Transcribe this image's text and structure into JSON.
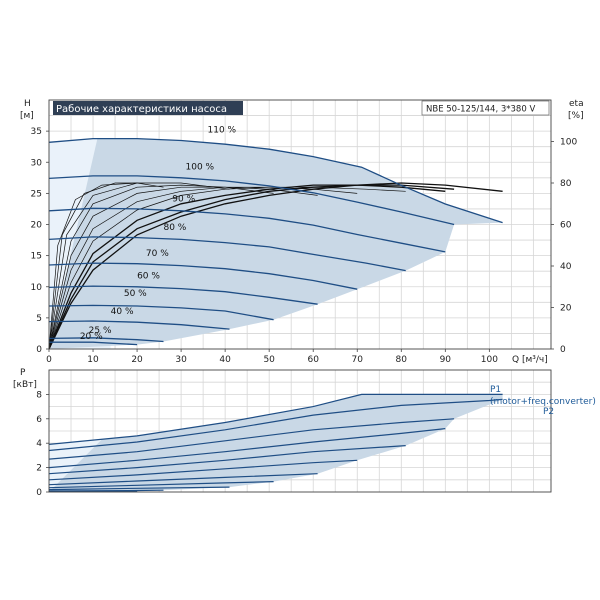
{
  "colors": {
    "curve": "#1f4e85",
    "area": "#c9d8e6",
    "area_light": "#eaf2fa",
    "eta": "#111111",
    "thin": "#333333",
    "title_bg": "#2f3f55",
    "grid": "#d6d6d6"
  },
  "top": {
    "title": "Рабочие характеристики насоса",
    "model": "NBE 50-125/144, 3*380 V",
    "y_label_line1": "H",
    "y_label_line2": "[м]",
    "eta_label_line1": "eta",
    "eta_label_line2": "[%]",
    "x_label": "Q [м³/ч]"
  },
  "bottom": {
    "y_label_line1": "P",
    "y_label_line2": "[кВт]",
    "legend_p1": "P1",
    "legend_p1_note": "(motor+freq.converter)",
    "legend_p2": "P2"
  },
  "chart_data": [
    {
      "type": "line",
      "title": "Рабочие характеристики насоса",
      "xlabel": "Q [м³/ч]",
      "ylabel": "H [м]",
      "y2label": "eta [%]",
      "xlim": [
        0,
        114
      ],
      "ylim": [
        0,
        40
      ],
      "y2lim": [
        0,
        120
      ],
      "x_ticks": [
        0,
        10,
        20,
        30,
        40,
        50,
        60,
        70,
        80,
        90,
        100
      ],
      "y_ticks": [
        0,
        5,
        10,
        15,
        20,
        25,
        30,
        35
      ],
      "y2_ticks": [
        0,
        20,
        40,
        60,
        80,
        100
      ],
      "grid": true,
      "head_curves": [
        {
          "name": "110 %",
          "points": [
            [
              0,
              33.2
            ],
            [
              10,
              33.8
            ],
            [
              20,
              33.8
            ],
            [
              30,
              33.5
            ],
            [
              40,
              32.9
            ],
            [
              50,
              32.1
            ],
            [
              60,
              30.9
            ],
            [
              71,
              29.2
            ],
            [
              80,
              26.3
            ],
            [
              90,
              23.3
            ],
            [
              103,
              20.3
            ]
          ]
        },
        {
          "name": "100 %",
          "points": [
            [
              0,
              27.4
            ],
            [
              10,
              27.8
            ],
            [
              20,
              27.8
            ],
            [
              30,
              27.5
            ],
            [
              40,
              27.0
            ],
            [
              50,
              26.2
            ],
            [
              60,
              25.1
            ],
            [
              70,
              23.6
            ],
            [
              80,
              22.0
            ],
            [
              92,
              20.0
            ]
          ]
        },
        {
          "name": "90 %",
          "points": [
            [
              0,
              22.2
            ],
            [
              10,
              22.6
            ],
            [
              20,
              22.5
            ],
            [
              30,
              22.2
            ],
            [
              40,
              21.7
            ],
            [
              50,
              21.0
            ],
            [
              60,
              19.9
            ],
            [
              70,
              18.4
            ],
            [
              80,
              17.0
            ],
            [
              90,
              15.6
            ]
          ]
        },
        {
          "name": "80 %",
          "points": [
            [
              0,
              17.6
            ],
            [
              10,
              18.0
            ],
            [
              20,
              17.9
            ],
            [
              30,
              17.6
            ],
            [
              40,
              17.1
            ],
            [
              50,
              16.4
            ],
            [
              60,
              15.2
            ],
            [
              72,
              13.8
            ],
            [
              81,
              12.6
            ]
          ]
        },
        {
          "name": "70 %",
          "points": [
            [
              0,
              13.5
            ],
            [
              10,
              13.8
            ],
            [
              20,
              13.7
            ],
            [
              30,
              13.4
            ],
            [
              40,
              12.9
            ],
            [
              50,
              12.1
            ],
            [
              60,
              11.0
            ],
            [
              70,
              9.6
            ]
          ]
        },
        {
          "name": "60 %",
          "points": [
            [
              0,
              9.9
            ],
            [
              10,
              10.1
            ],
            [
              20,
              10.0
            ],
            [
              30,
              9.7
            ],
            [
              40,
              9.2
            ],
            [
              50,
              8.3
            ],
            [
              61,
              7.2
            ]
          ]
        },
        {
          "name": "50 %",
          "points": [
            [
              0,
              6.9
            ],
            [
              10,
              7.0
            ],
            [
              20,
              6.9
            ],
            [
              30,
              6.6
            ],
            [
              40,
              6.1
            ],
            [
              51,
              4.7
            ]
          ]
        },
        {
          "name": "40 %",
          "points": [
            [
              0,
              4.4
            ],
            [
              10,
              4.5
            ],
            [
              20,
              4.3
            ],
            [
              30,
              3.9
            ],
            [
              41,
              3.2
            ]
          ]
        },
        {
          "name": "25 %",
          "points": [
            [
              0,
              1.7
            ],
            [
              10,
              1.8
            ],
            [
              20,
              1.5
            ],
            [
              26,
              1.2
            ]
          ]
        },
        {
          "name": "20 %",
          "points": [
            [
              0,
              1.1
            ],
            [
              10,
              1.1
            ],
            [
              20,
              0.7
            ]
          ]
        }
      ],
      "efficiency_curves": [
        {
          "points": [
            [
              0,
              0
            ],
            [
              5,
              22
            ],
            [
              10,
              38
            ],
            [
              20,
              55
            ],
            [
              30,
              64
            ],
            [
              40,
              70
            ],
            [
              50,
              74
            ],
            [
              60,
              77
            ],
            [
              70,
              79
            ],
            [
              80,
              80
            ],
            [
              90,
              79
            ],
            [
              103,
              76
            ]
          ]
        },
        {
          "points": [
            [
              0,
              0
            ],
            [
              5,
              24
            ],
            [
              10,
              42
            ],
            [
              20,
              58
            ],
            [
              30,
              66
            ],
            [
              40,
              72
            ],
            [
              50,
              76
            ],
            [
              60,
              78
            ],
            [
              70,
              79
            ],
            [
              80,
              79
            ],
            [
              92,
              77
            ]
          ]
        },
        {
          "points": [
            [
              0,
              0
            ],
            [
              5,
              27
            ],
            [
              10,
              46
            ],
            [
              20,
              62
            ],
            [
              30,
              70
            ],
            [
              40,
              74
            ],
            [
              50,
              77
            ],
            [
              60,
              79
            ],
            [
              70,
              79
            ],
            [
              80,
              78
            ],
            [
              90,
              76
            ]
          ]
        },
        {
          "points": [
            [
              0,
              0
            ],
            [
              5,
              32
            ],
            [
              10,
              52
            ],
            [
              20,
              67
            ],
            [
              30,
              74
            ],
            [
              40,
              77
            ],
            [
              50,
              78
            ],
            [
              60,
              78
            ],
            [
              72,
              77
            ],
            [
              81,
              76
            ]
          ]
        },
        {
          "points": [
            [
              0,
              0
            ],
            [
              5,
              38
            ],
            [
              10,
              58
            ],
            [
              20,
              71
            ],
            [
              30,
              76
            ],
            [
              40,
              78
            ],
            [
              50,
              78
            ],
            [
              60,
              77
            ],
            [
              70,
              75
            ]
          ]
        },
        {
          "points": [
            [
              0,
              0
            ],
            [
              5,
              45
            ],
            [
              10,
              64
            ],
            [
              20,
              75
            ],
            [
              30,
              78
            ],
            [
              40,
              78
            ],
            [
              50,
              77
            ],
            [
              61,
              74
            ]
          ]
        },
        {
          "points": [
            [
              0,
              0
            ],
            [
              5,
              52
            ],
            [
              10,
              70
            ],
            [
              20,
              78
            ],
            [
              30,
              79
            ],
            [
              40,
              78
            ],
            [
              51,
              75
            ]
          ]
        },
        {
          "points": [
            [
              0,
              0
            ],
            [
              4,
              55
            ],
            [
              10,
              74
            ],
            [
              20,
              80
            ],
            [
              30,
              80
            ],
            [
              41,
              77
            ]
          ]
        },
        {
          "points": [
            [
              0,
              0
            ],
            [
              3,
              55
            ],
            [
              8,
              75
            ],
            [
              15,
              80
            ],
            [
              20,
              80
            ],
            [
              26,
              78
            ]
          ]
        },
        {
          "points": [
            [
              0,
              0
            ],
            [
              2,
              50
            ],
            [
              6,
              72
            ],
            [
              12,
              79
            ],
            [
              20,
              80
            ]
          ]
        }
      ],
      "pct_labels": [
        {
          "text": "110 %",
          "x": 36,
          "y": 34.8
        },
        {
          "text": "100 %",
          "x": 31,
          "y": 28.8
        },
        {
          "text": "90 %",
          "x": 28,
          "y": 23.7
        },
        {
          "text": "80 %",
          "x": 26,
          "y": 19.1
        },
        {
          "text": "70 %",
          "x": 22,
          "y": 14.9
        },
        {
          "text": "60 %",
          "x": 20,
          "y": 11.3
        },
        {
          "text": "50 %",
          "x": 17,
          "y": 8.5
        },
        {
          "text": "40 %",
          "x": 14,
          "y": 5.6
        },
        {
          "text": "25 %",
          "x": 9,
          "y": 2.6
        },
        {
          "text": "20 %",
          "x": 7,
          "y": 1.6
        }
      ]
    },
    {
      "type": "line",
      "title": "",
      "xlabel": "",
      "ylabel": "P [кВт]",
      "xlim": [
        0,
        114
      ],
      "ylim": [
        0,
        10
      ],
      "y_ticks": [
        0,
        2,
        4,
        6,
        8
      ],
      "grid": true,
      "power_curves": [
        {
          "name": "P1",
          "points": [
            [
              0,
              3.9
            ],
            [
              20,
              4.6
            ],
            [
              40,
              5.7
            ],
            [
              60,
              7.0
            ],
            [
              71,
              8.0
            ],
            [
              90,
              8.0
            ],
            [
              100,
              8.0
            ],
            [
              103,
              8.0
            ]
          ]
        },
        {
          "name": "P2",
          "points": [
            [
              0,
              3.4
            ],
            [
              20,
              4.1
            ],
            [
              40,
              5.1
            ],
            [
              60,
              6.3
            ],
            [
              80,
              7.1
            ],
            [
              100,
              7.5
            ],
            [
              103,
              7.6
            ]
          ]
        },
        {
          "points": [
            [
              0,
              2.7
            ],
            [
              20,
              3.3
            ],
            [
              40,
              4.2
            ],
            [
              60,
              5.1
            ],
            [
              80,
              5.7
            ],
            [
              92,
              6.0
            ]
          ]
        },
        {
          "points": [
            [
              0,
              2.0
            ],
            [
              20,
              2.6
            ],
            [
              40,
              3.3
            ],
            [
              60,
              4.1
            ],
            [
              80,
              4.8
            ],
            [
              90,
              5.2
            ]
          ]
        },
        {
          "points": [
            [
              0,
              1.5
            ],
            [
              20,
              2.0
            ],
            [
              40,
              2.6
            ],
            [
              60,
              3.3
            ],
            [
              81,
              3.8
            ]
          ]
        },
        {
          "points": [
            [
              0,
              1.0
            ],
            [
              20,
              1.4
            ],
            [
              40,
              1.9
            ],
            [
              60,
              2.4
            ],
            [
              70,
              2.6
            ]
          ]
        },
        {
          "points": [
            [
              0,
              0.6
            ],
            [
              20,
              0.9
            ],
            [
              40,
              1.2
            ],
            [
              61,
              1.5
            ]
          ]
        },
        {
          "points": [
            [
              0,
              0.35
            ],
            [
              20,
              0.55
            ],
            [
              40,
              0.75
            ],
            [
              51,
              0.85
            ]
          ]
        },
        {
          "points": [
            [
              0,
              0.2
            ],
            [
              20,
              0.3
            ],
            [
              41,
              0.4
            ]
          ]
        },
        {
          "points": [
            [
              0,
              0.08
            ],
            [
              20,
              0.12
            ],
            [
              26,
              0.15
            ]
          ]
        },
        {
          "points": [
            [
              0,
              0.05
            ],
            [
              20,
              0.07
            ]
          ]
        }
      ]
    }
  ]
}
